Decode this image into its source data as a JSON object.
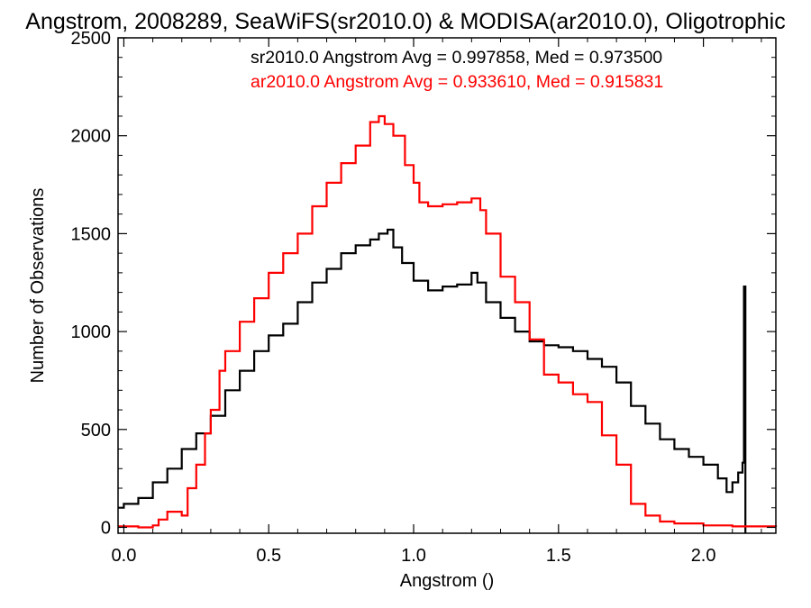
{
  "chart_data": {
    "type": "line",
    "title": "Angstrom, 2008289, SeaWiFS(sr2010.0) & MODISA(ar2010.0), Oligotrophic",
    "xlabel": "Angstrom ()",
    "ylabel": "Number of Observations",
    "xlim": [
      -0.02,
      2.25
    ],
    "ylim": [
      -30,
      2500
    ],
    "x_ticks": [
      0.0,
      0.5,
      1.0,
      1.5,
      2.0
    ],
    "x_tick_labels": [
      "0.0",
      "0.5",
      "1.0",
      "1.5",
      "2.0"
    ],
    "y_ticks": [
      0,
      500,
      1000,
      1500,
      2000,
      2500
    ],
    "y_tick_labels": [
      "0",
      "500",
      "1000",
      "1500",
      "2000",
      "2500"
    ],
    "grid": false,
    "legend_position": "top-right",
    "series": [
      {
        "name": "sr2010.0 Angstrom Avg = 0.997858, Med = 0.973500",
        "color": "#000000",
        "points": [
          [
            -0.02,
            100
          ],
          [
            0.0,
            120
          ],
          [
            0.05,
            150
          ],
          [
            0.1,
            230
          ],
          [
            0.15,
            300
          ],
          [
            0.2,
            400
          ],
          [
            0.25,
            480
          ],
          [
            0.3,
            570
          ],
          [
            0.35,
            700
          ],
          [
            0.4,
            800
          ],
          [
            0.45,
            900
          ],
          [
            0.5,
            980
          ],
          [
            0.55,
            1040
          ],
          [
            0.6,
            1150
          ],
          [
            0.65,
            1250
          ],
          [
            0.7,
            1320
          ],
          [
            0.75,
            1400
          ],
          [
            0.8,
            1440
          ],
          [
            0.85,
            1470
          ],
          [
            0.88,
            1500
          ],
          [
            0.91,
            1520
          ],
          [
            0.93,
            1430
          ],
          [
            0.96,
            1350
          ],
          [
            1.0,
            1260
          ],
          [
            1.05,
            1210
          ],
          [
            1.1,
            1230
          ],
          [
            1.15,
            1240
          ],
          [
            1.2,
            1300
          ],
          [
            1.22,
            1250
          ],
          [
            1.25,
            1150
          ],
          [
            1.3,
            1070
          ],
          [
            1.35,
            1000
          ],
          [
            1.4,
            950
          ],
          [
            1.45,
            930
          ],
          [
            1.5,
            920
          ],
          [
            1.55,
            900
          ],
          [
            1.6,
            860
          ],
          [
            1.65,
            820
          ],
          [
            1.7,
            740
          ],
          [
            1.75,
            620
          ],
          [
            1.8,
            530
          ],
          [
            1.85,
            450
          ],
          [
            1.9,
            400
          ],
          [
            1.95,
            360
          ],
          [
            2.0,
            320
          ],
          [
            2.05,
            250
          ],
          [
            2.08,
            180
          ],
          [
            2.1,
            230
          ],
          [
            2.12,
            280
          ],
          [
            2.135,
            330
          ],
          [
            2.14,
            1230
          ],
          [
            2.145,
            -30
          ]
        ]
      },
      {
        "name": "ar2010.0 Angstrom Avg = 0.933610, Med = 0.915831",
        "color": "#ff0000",
        "points": [
          [
            -0.02,
            5
          ],
          [
            0.05,
            0
          ],
          [
            0.1,
            10
          ],
          [
            0.12,
            40
          ],
          [
            0.15,
            80
          ],
          [
            0.2,
            60
          ],
          [
            0.22,
            200
          ],
          [
            0.25,
            320
          ],
          [
            0.28,
            480
          ],
          [
            0.3,
            600
          ],
          [
            0.33,
            800
          ],
          [
            0.35,
            900
          ],
          [
            0.4,
            1050
          ],
          [
            0.45,
            1170
          ],
          [
            0.5,
            1300
          ],
          [
            0.55,
            1400
          ],
          [
            0.6,
            1500
          ],
          [
            0.65,
            1640
          ],
          [
            0.7,
            1760
          ],
          [
            0.75,
            1860
          ],
          [
            0.8,
            1950
          ],
          [
            0.85,
            2070
          ],
          [
            0.88,
            2100
          ],
          [
            0.9,
            2060
          ],
          [
            0.93,
            2000
          ],
          [
            0.97,
            1850
          ],
          [
            1.0,
            1760
          ],
          [
            1.02,
            1660
          ],
          [
            1.05,
            1640
          ],
          [
            1.1,
            1650
          ],
          [
            1.15,
            1660
          ],
          [
            1.2,
            1680
          ],
          [
            1.23,
            1620
          ],
          [
            1.25,
            1500
          ],
          [
            1.3,
            1280
          ],
          [
            1.35,
            1150
          ],
          [
            1.4,
            960
          ],
          [
            1.45,
            780
          ],
          [
            1.5,
            740
          ],
          [
            1.55,
            680
          ],
          [
            1.6,
            640
          ],
          [
            1.65,
            470
          ],
          [
            1.7,
            320
          ],
          [
            1.75,
            120
          ],
          [
            1.8,
            60
          ],
          [
            1.85,
            30
          ],
          [
            1.9,
            20
          ],
          [
            2.0,
            10
          ],
          [
            2.1,
            5
          ],
          [
            2.25,
            2
          ]
        ]
      }
    ]
  }
}
